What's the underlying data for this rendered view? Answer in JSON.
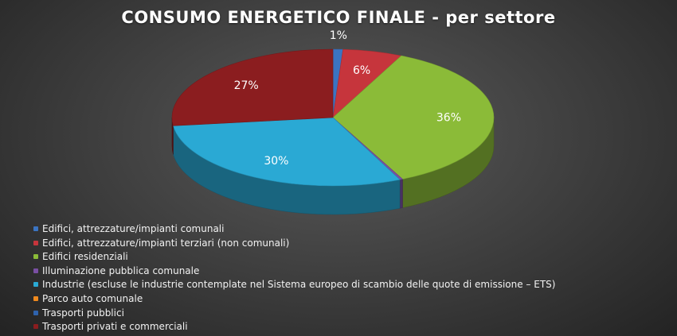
{
  "chart_data": {
    "type": "pie",
    "title": "CONSUMO ENERGETICO FINALE - per settore",
    "slices": [
      {
        "label": "Edifici, attrezzature/impianti comunali",
        "value": 1,
        "display": "1%",
        "color": "#3b74c2"
      },
      {
        "label": "Edifici, attrezzature/impianti terziari (non comunali)",
        "value": 6,
        "display": "6%",
        "color": "#c6353c"
      },
      {
        "label": "Edifici residenziali",
        "value": 36,
        "display": "36%",
        "color": "#8bbb38"
      },
      {
        "label": "Illuminazione pubblica comunale",
        "value": 0.3,
        "display": "",
        "color": "#7a4fa3"
      },
      {
        "label": "Industrie (escluse le industrie contemplate nel Sistema europeo di scambio delle quote di emissione – ETS)",
        "value": 30,
        "display": "30%",
        "color": "#2aa9d4"
      },
      {
        "label": "Parco auto comunale",
        "value": 0,
        "display": "",
        "color": "#f08a1e"
      },
      {
        "label": "Trasporti pubblici",
        "value": 0,
        "display": "",
        "color": "#2f63ad"
      },
      {
        "label": "Trasporti privati e commerciali",
        "value": 27,
        "display": "27%",
        "color": "#8b1d1f"
      }
    ],
    "legend_position": "bottom-left"
  }
}
